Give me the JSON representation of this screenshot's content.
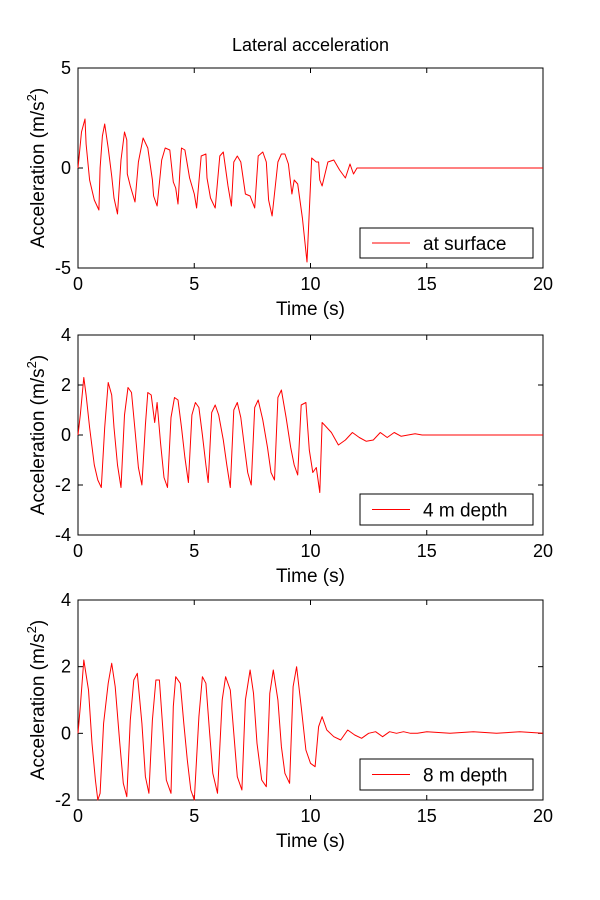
{
  "chart_data": [
    {
      "type": "line",
      "title": "Lateral acceleration",
      "xlabel": "Time (s)",
      "ylabel": "Acceleration (m/s",
      "ylabel_sup": "2",
      "ylabel_close": ")",
      "xlim": [
        0,
        20
      ],
      "ylim": [
        -5,
        5
      ],
      "xticks": [
        0,
        5,
        10,
        15,
        20
      ],
      "yticks": [
        -5,
        0,
        5
      ],
      "grid": false,
      "legend_position": "bottom-right",
      "series_color": "#ff0000",
      "series": [
        {
          "name": "at surface",
          "x": [
            0,
            0.15,
            0.3,
            0.35,
            0.5,
            0.7,
            0.9,
            0.95,
            1.05,
            1.15,
            1.3,
            1.45,
            1.55,
            1.7,
            1.85,
            2.0,
            2.1,
            2.12,
            2.25,
            2.45,
            2.6,
            2.8,
            3.0,
            3.2,
            3.25,
            3.4,
            3.6,
            3.75,
            3.95,
            4.1,
            4.2,
            4.3,
            4.4,
            4.45,
            4.6,
            4.8,
            5.0,
            5.1,
            5.3,
            5.5,
            5.55,
            5.7,
            5.9,
            6.1,
            6.25,
            6.45,
            6.6,
            6.7,
            6.85,
            7.0,
            7.2,
            7.4,
            7.6,
            7.75,
            7.95,
            8.1,
            8.2,
            8.35,
            8.6,
            8.75,
            8.9,
            9.05,
            9.2,
            9.3,
            9.45,
            9.65,
            9.85,
            10.05,
            10.25,
            10.35,
            10.4,
            10.5,
            10.6,
            10.75,
            11.0,
            11.25,
            11.5,
            11.7,
            11.85,
            12.0,
            12.3,
            12.6,
            12.9,
            13.2,
            13.5,
            13.8,
            14.1,
            14.5,
            15.0,
            16.0,
            18.0,
            20.0
          ],
          "y": [
            0,
            1.8,
            2.45,
            1.2,
            -0.6,
            -1.6,
            -2.1,
            0,
            1.6,
            2.2,
            1.0,
            -0.4,
            -1.5,
            -2.3,
            0.4,
            1.8,
            1.4,
            -0.3,
            -0.9,
            -1.7,
            0.3,
            1.5,
            1.0,
            -0.6,
            -1.4,
            -1.9,
            0.4,
            1.0,
            0.9,
            -0.7,
            -1.0,
            -1.8,
            0.2,
            1.0,
            0.9,
            -0.5,
            -1.3,
            -2.0,
            0.6,
            0.7,
            -0.5,
            -1.5,
            -2.0,
            0.6,
            0.8,
            -0.9,
            -1.9,
            0.3,
            0.6,
            0.3,
            -1.3,
            -1.4,
            -2.0,
            0.6,
            0.8,
            0.3,
            -1.6,
            -2.4,
            0.3,
            0.7,
            0.7,
            0.2,
            -1.3,
            -0.6,
            -0.8,
            -2.5,
            -4.7,
            0.5,
            0.3,
            0.3,
            -0.6,
            -0.9,
            -0.4,
            0.3,
            0.4,
            -0.1,
            -0.5,
            0.2,
            -0.3,
            0.0,
            0.0,
            0.0,
            0.0,
            0.0,
            0.0,
            0.0,
            0.0,
            0.0,
            0.0,
            0.0,
            0.0,
            0.0
          ]
        }
      ]
    },
    {
      "type": "line",
      "title": "",
      "xlabel": "Time (s)",
      "ylabel": "Acceleration (m/s",
      "ylabel_sup": "2",
      "ylabel_close": ")",
      "xlim": [
        0,
        20
      ],
      "ylim": [
        -4,
        4
      ],
      "xticks": [
        0,
        5,
        10,
        15,
        20
      ],
      "yticks": [
        -4,
        -2,
        0,
        2,
        4
      ],
      "grid": false,
      "legend_position": "bottom-right",
      "series_color": "#ff0000",
      "series": [
        {
          "name": "4 m depth",
          "x": [
            0,
            0.1,
            0.25,
            0.35,
            0.5,
            0.7,
            0.85,
            1.0,
            1.15,
            1.3,
            1.45,
            1.55,
            1.7,
            1.85,
            2.0,
            2.15,
            2.3,
            2.45,
            2.6,
            2.75,
            2.9,
            3.0,
            3.15,
            3.3,
            3.4,
            3.55,
            3.7,
            3.85,
            4.0,
            4.15,
            4.3,
            4.45,
            4.6,
            4.75,
            4.9,
            5.05,
            5.2,
            5.35,
            5.5,
            5.6,
            5.75,
            5.9,
            6.05,
            6.25,
            6.4,
            6.55,
            6.7,
            6.85,
            7.0,
            7.15,
            7.3,
            7.45,
            7.6,
            7.75,
            7.95,
            8.15,
            8.3,
            8.45,
            8.6,
            8.75,
            8.95,
            9.15,
            9.3,
            9.45,
            9.6,
            9.8,
            9.95,
            10.1,
            10.25,
            10.4,
            10.5,
            10.6,
            10.9,
            11.2,
            11.5,
            11.8,
            12.1,
            12.4,
            12.7,
            13.0,
            13.3,
            13.6,
            13.9,
            14.2,
            14.5,
            14.8,
            15.0,
            16.0,
            18.0,
            20.0
          ],
          "y": [
            0,
            0.8,
            2.3,
            1.6,
            0.3,
            -1.2,
            -1.8,
            -2.1,
            0.3,
            2.1,
            1.6,
            0.3,
            -1.2,
            -2.1,
            0.8,
            1.9,
            1.7,
            0.2,
            -1.3,
            -2.0,
            0.4,
            1.7,
            1.6,
            0.5,
            1.3,
            -0.3,
            -1.7,
            -2.1,
            0.7,
            1.5,
            1.4,
            0.3,
            -0.9,
            -1.9,
            0.8,
            1.3,
            1.1,
            0.0,
            -1.2,
            -1.9,
            0.9,
            1.2,
            0.8,
            -0.2,
            -1.2,
            -2.1,
            1.0,
            1.3,
            0.7,
            -0.4,
            -1.5,
            -2.0,
            1.1,
            1.4,
            0.6,
            -0.5,
            -1.5,
            -1.8,
            1.5,
            1.8,
            0.7,
            -0.5,
            -1.2,
            -1.6,
            1.2,
            1.3,
            -0.6,
            -1.5,
            -1.3,
            -2.3,
            0.5,
            0.4,
            0.1,
            -0.4,
            -0.2,
            0.1,
            -0.1,
            -0.25,
            -0.2,
            0.1,
            -0.1,
            0.1,
            -0.05,
            0.0,
            0.05,
            0.0,
            0.0,
            0.0,
            0.0,
            0.0
          ]
        }
      ]
    },
    {
      "type": "line",
      "title": "",
      "xlabel": "Time (s)",
      "ylabel": "Acceleration (m/s",
      "ylabel_sup": "2",
      "ylabel_close": ")",
      "xlim": [
        0,
        20
      ],
      "ylim": [
        -2,
        4
      ],
      "xticks": [
        0,
        5,
        10,
        15,
        20
      ],
      "yticks": [
        -2,
        0,
        2,
        4
      ],
      "grid": false,
      "legend_position": "bottom-right",
      "series_color": "#ff0000",
      "series": [
        {
          "name": "8 m depth",
          "x": [
            0,
            0.1,
            0.25,
            0.45,
            0.6,
            0.75,
            0.85,
            0.95,
            1.1,
            1.3,
            1.45,
            1.6,
            1.8,
            1.95,
            2.1,
            2.25,
            2.4,
            2.55,
            2.75,
            2.9,
            3.05,
            3.2,
            3.35,
            3.5,
            3.65,
            3.8,
            4.0,
            4.1,
            4.2,
            4.4,
            4.55,
            4.7,
            4.85,
            5.0,
            5.2,
            5.35,
            5.5,
            5.65,
            5.8,
            6.0,
            6.2,
            6.35,
            6.55,
            6.7,
            6.85,
            7.05,
            7.2,
            7.4,
            7.55,
            7.7,
            7.9,
            8.1,
            8.25,
            8.4,
            8.6,
            8.75,
            8.9,
            9.1,
            9.25,
            9.4,
            9.6,
            9.8,
            10.0,
            10.2,
            10.35,
            10.5,
            10.7,
            11.0,
            11.3,
            11.6,
            11.9,
            12.2,
            12.5,
            12.8,
            13.1,
            13.4,
            13.7,
            14.0,
            14.3,
            14.6,
            15.0,
            16.0,
            17.0,
            18.0,
            19.0,
            20.0
          ],
          "y": [
            0,
            0.8,
            2.2,
            1.3,
            -0.3,
            -1.4,
            -2.0,
            -1.8,
            0.3,
            1.5,
            2.1,
            1.4,
            -0.3,
            -1.5,
            -1.9,
            0.4,
            1.6,
            1.8,
            0.3,
            -1.3,
            -1.8,
            0.4,
            1.6,
            1.6,
            0.1,
            -1.4,
            -1.8,
            0.8,
            1.7,
            1.5,
            0.3,
            -0.8,
            -1.7,
            -2.0,
            0.5,
            1.7,
            1.5,
            0.1,
            -1.2,
            -1.8,
            1.0,
            1.7,
            1.3,
            0.0,
            -1.3,
            -1.7,
            1.0,
            1.9,
            1.2,
            -0.3,
            -1.4,
            -1.6,
            1.2,
            1.9,
            1.0,
            -0.4,
            -1.2,
            -1.5,
            1.4,
            2.0,
            0.8,
            -0.5,
            -0.9,
            -1.0,
            0.2,
            0.5,
            0.1,
            -0.1,
            -0.2,
            0.1,
            -0.05,
            -0.15,
            0.0,
            0.05,
            -0.1,
            0.05,
            0.0,
            0.05,
            0.0,
            0.0,
            0.05,
            0.0,
            0.05,
            0.0,
            0.05,
            0.0
          ]
        }
      ]
    }
  ]
}
